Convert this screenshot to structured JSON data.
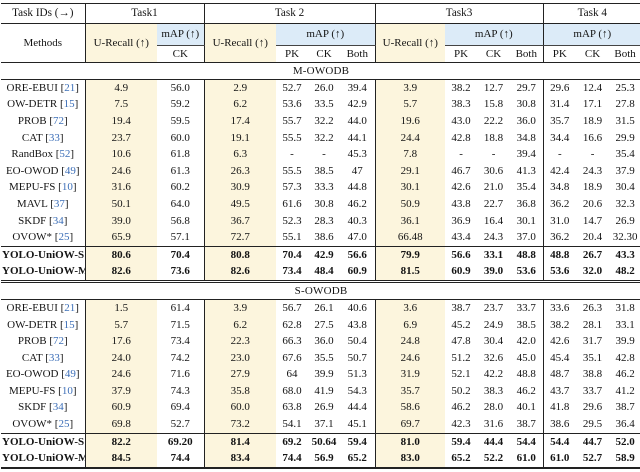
{
  "colors": {
    "u_recall_column_bg": "#fcf5dd",
    "map_header_bg": "#dcebf8",
    "citation_blue": "#3d6fb8",
    "rule_color": "#222222"
  },
  "header": {
    "task_ids": "Task IDs (→)",
    "methods": "Methods",
    "u_recall": "U-Recall (↑)",
    "map": "mAP (↑)",
    "tasks": [
      "Task1",
      "Task 2",
      "Task3",
      "Task 4"
    ],
    "subcols": {
      "pk": "PK",
      "ck": "CK",
      "both": "Both"
    }
  },
  "sections": [
    {
      "label": "M-OWODB",
      "rows": [
        {
          "method": "ORE-EBUI",
          "cite": "21",
          "bold": false,
          "values": [
            "4.9",
            "56.0",
            "2.9",
            "52.7",
            "26.0",
            "39.4",
            "3.9",
            "38.2",
            "12.7",
            "29.7",
            "29.6",
            "12.4",
            "25.3"
          ]
        },
        {
          "method": "OW-DETR",
          "cite": "15",
          "bold": false,
          "values": [
            "7.5",
            "59.2",
            "6.2",
            "53.6",
            "33.5",
            "42.9",
            "5.7",
            "38.3",
            "15.8",
            "30.8",
            "31.4",
            "17.1",
            "27.8"
          ]
        },
        {
          "method": "PROB",
          "cite": "72",
          "bold": false,
          "values": [
            "19.4",
            "59.5",
            "17.4",
            "55.7",
            "32.2",
            "44.0",
            "19.6",
            "43.0",
            "22.2",
            "36.0",
            "35.7",
            "18.9",
            "31.5"
          ]
        },
        {
          "method": "CAT",
          "cite": "33",
          "bold": false,
          "values": [
            "23.7",
            "60.0",
            "19.1",
            "55.5",
            "32.2",
            "44.1",
            "24.4",
            "42.8",
            "18.8",
            "34.8",
            "34.4",
            "16.6",
            "29.9"
          ]
        },
        {
          "method": "RandBox",
          "cite": "52",
          "bold": false,
          "values": [
            "10.6",
            "61.8",
            "6.3",
            "-",
            "-",
            "45.3",
            "7.8",
            "-",
            "-",
            "39.4",
            "-",
            "-",
            "35.4"
          ]
        },
        {
          "method": "EO-OWOD",
          "cite": "49",
          "bold": false,
          "values": [
            "24.6",
            "61.3",
            "26.3",
            "55.5",
            "38.5",
            "47",
            "29.1",
            "46.7",
            "30.6",
            "41.3",
            "42.4",
            "24.3",
            "37.9"
          ]
        },
        {
          "method": "MEPU-FS",
          "cite": "10",
          "bold": false,
          "values": [
            "31.6",
            "60.2",
            "30.9",
            "57.3",
            "33.3",
            "44.8",
            "30.1",
            "42.6",
            "21.0",
            "35.4",
            "34.8",
            "18.9",
            "30.4"
          ]
        },
        {
          "method": "MAVL",
          "cite": "37",
          "bold": false,
          "values": [
            "50.1",
            "64.0",
            "49.5",
            "61.6",
            "30.8",
            "46.2",
            "50.9",
            "43.8",
            "22.7",
            "36.8",
            "36.2",
            "20.6",
            "32.3"
          ]
        },
        {
          "method": "SKDF",
          "cite": "34",
          "bold": false,
          "values": [
            "39.0",
            "56.8",
            "36.7",
            "52.3",
            "28.3",
            "40.3",
            "36.1",
            "36.9",
            "16.4",
            "30.1",
            "31.0",
            "14.7",
            "26.9"
          ]
        },
        {
          "method": "OVOW*",
          "cite": "25",
          "bold": false,
          "values": [
            "65.9",
            "57.1",
            "72.7",
            "55.1",
            "38.6",
            "47.0",
            "66.48",
            "43.4",
            "24.3",
            "37.0",
            "36.2",
            "20.4",
            "32.30"
          ]
        },
        {
          "method": "YOLO-UniOW-S",
          "cite": null,
          "bold": true,
          "values": [
            "80.6",
            "70.4",
            "80.8",
            "70.4",
            "42.9",
            "56.6",
            "79.9",
            "56.6",
            "33.1",
            "48.8",
            "48.8",
            "26.7",
            "43.3"
          ]
        },
        {
          "method": "YOLO-UniOW-M",
          "cite": null,
          "bold": true,
          "values": [
            "82.6",
            "73.6",
            "82.6",
            "73.4",
            "48.4",
            "60.9",
            "81.5",
            "60.9",
            "39.0",
            "53.6",
            "53.6",
            "32.0",
            "48.2"
          ]
        }
      ]
    },
    {
      "label": "S-OWODB",
      "rows": [
        {
          "method": "ORE-EBUI",
          "cite": "21",
          "bold": false,
          "values": [
            "1.5",
            "61.4",
            "3.9",
            "56.7",
            "26.1",
            "40.6",
            "3.6",
            "38.7",
            "23.7",
            "33.7",
            "33.6",
            "26.3",
            "31.8"
          ]
        },
        {
          "method": "OW-DETR",
          "cite": "15",
          "bold": false,
          "values": [
            "5.7",
            "71.5",
            "6.2",
            "62.8",
            "27.5",
            "43.8",
            "6.9",
            "45.2",
            "24.9",
            "38.5",
            "38.2",
            "28.1",
            "33.1"
          ]
        },
        {
          "method": "PROB",
          "cite": "72",
          "bold": false,
          "values": [
            "17.6",
            "73.4",
            "22.3",
            "66.3",
            "36.0",
            "50.4",
            "24.8",
            "47.8",
            "30.4",
            "42.0",
            "42.6",
            "31.7",
            "39.9"
          ]
        },
        {
          "method": "CAT",
          "cite": "33",
          "bold": false,
          "values": [
            "24.0",
            "74.2",
            "23.0",
            "67.6",
            "35.5",
            "50.7",
            "24.6",
            "51.2",
            "32.6",
            "45.0",
            "45.4",
            "35.1",
            "42.8"
          ]
        },
        {
          "method": "EO-OWOD",
          "cite": "49",
          "bold": false,
          "values": [
            "24.6",
            "71.6",
            "27.9",
            "64",
            "39.9",
            "51.3",
            "31.9",
            "52.1",
            "42.2",
            "48.8",
            "48.7",
            "38.8",
            "46.2"
          ]
        },
        {
          "method": "MEPU-FS",
          "cite": "10",
          "bold": false,
          "values": [
            "37.9",
            "74.3",
            "35.8",
            "68.0",
            "41.9",
            "54.3",
            "35.7",
            "50.2",
            "38.3",
            "46.2",
            "43.7",
            "33.7",
            "41.2"
          ]
        },
        {
          "method": "SKDF",
          "cite": "34",
          "bold": false,
          "values": [
            "60.9",
            "69.4",
            "60.0",
            "63.8",
            "26.9",
            "44.4",
            "58.6",
            "46.2",
            "28.0",
            "40.1",
            "41.8",
            "29.6",
            "38.7"
          ]
        },
        {
          "method": "OVOW*",
          "cite": "25",
          "bold": false,
          "values": [
            "69.8",
            "52.7",
            "73.2",
            "54.1",
            "37.1",
            "45.1",
            "69.7",
            "42.3",
            "31.6",
            "38.7",
            "38.6",
            "29.5",
            "36.4"
          ]
        },
        {
          "method": "YOLO-UniOW-S",
          "cite": null,
          "bold": true,
          "values": [
            "82.2",
            "69.20",
            "81.4",
            "69.2",
            "50.64",
            "59.4",
            "81.0",
            "59.4",
            "44.4",
            "54.4",
            "54.4",
            "44.7",
            "52.0"
          ]
        },
        {
          "method": "YOLO-UniOW-M",
          "cite": null,
          "bold": true,
          "values": [
            "84.5",
            "74.4",
            "83.4",
            "74.4",
            "56.9",
            "65.2",
            "83.0",
            "65.2",
            "52.2",
            "61.0",
            "61.0",
            "52.7",
            "58.9"
          ]
        }
      ]
    }
  ]
}
